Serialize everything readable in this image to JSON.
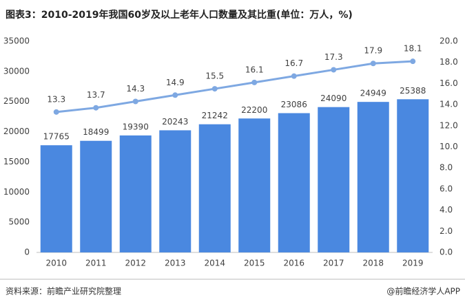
{
  "chart_data": {
    "type": "combo",
    "title": "图表3：2010-2019年我国60岁及以上老年人口数量及其比重(单位：万人，%)",
    "source": "资料来源：前瞻产业研究院整理",
    "credit": "@前瞻经济学人APP",
    "categories": [
      "2010",
      "2011",
      "2012",
      "2013",
      "2014",
      "2015",
      "2016",
      "2017",
      "2018",
      "2019"
    ],
    "series": [
      {
        "type": "bar",
        "color": "#4a88e0",
        "values": [
          17765,
          18499,
          19390,
          20243,
          21242,
          22200,
          23086,
          24090,
          24949,
          25388
        ]
      },
      {
        "type": "line",
        "axis": "y2",
        "color": "#7ea8e2",
        "values": [
          13.3,
          13.7,
          14.3,
          14.9,
          15.5,
          16.1,
          16.7,
          17.3,
          17.9,
          18.1
        ]
      }
    ],
    "ylim": [
      0,
      35000
    ],
    "yticks": [
      0,
      5000,
      10000,
      15000,
      20000,
      25000,
      30000,
      35000
    ],
    "y2lim": [
      0,
      20
    ],
    "y2ticks": [
      {
        "value": 0,
        "label": "0.0"
      },
      {
        "value": 2,
        "label": "2.0"
      },
      {
        "value": 4,
        "label": "4.0"
      },
      {
        "value": 6,
        "label": "6.0"
      },
      {
        "value": 8,
        "label": "8.0"
      },
      {
        "value": 10,
        "label": "10.0"
      },
      {
        "value": 12,
        "label": "12.0"
      },
      {
        "value": 14,
        "label": "14.0"
      },
      {
        "value": 16,
        "label": "16.0"
      },
      {
        "value": 18,
        "label": "18.0"
      },
      {
        "value": 20,
        "label": "20.0"
      }
    ],
    "grid": false
  }
}
